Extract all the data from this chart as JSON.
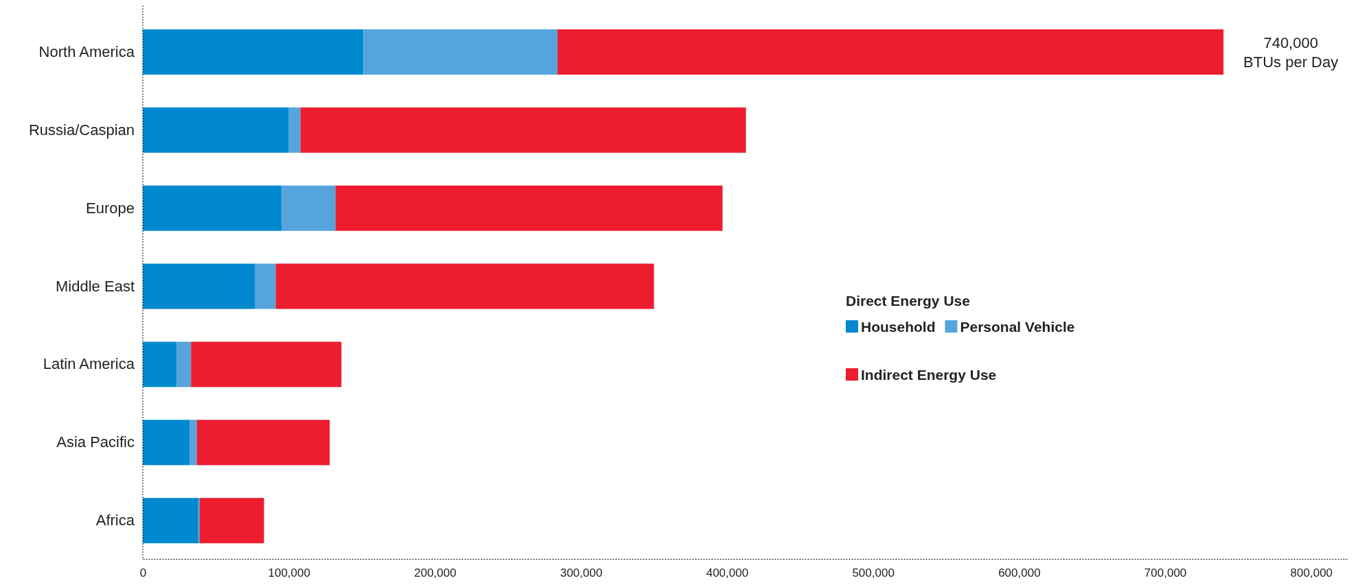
{
  "chart_data": {
    "type": "bar",
    "orientation": "horizontal",
    "stacked": true,
    "categories": [
      "North America",
      "Russia/Caspian",
      "Europe",
      "Middle East",
      "Latin America",
      "Asia Pacific",
      "Africa"
    ],
    "series": [
      {
        "name": "Household",
        "color": "#0089cf",
        "values": [
          151000,
          100000,
          95000,
          77000,
          23000,
          32000,
          38000
        ]
      },
      {
        "name": "Personal Vehicle",
        "color": "#55a5dc",
        "values": [
          133000,
          8000,
          37000,
          14000,
          10000,
          5000,
          1000
        ]
      },
      {
        "name": "Indirect Energy Use",
        "color": "#ed1c2e",
        "values": [
          456000,
          305000,
          265000,
          259000,
          103000,
          91000,
          44000
        ]
      }
    ],
    "xlim": [
      0,
      825000
    ],
    "xticks": [
      {
        "value": 0,
        "label": "0"
      },
      {
        "value": 100000,
        "label": "100,000"
      },
      {
        "value": 200000,
        "label": "200,000"
      },
      {
        "value": 300000,
        "label": "300,000"
      },
      {
        "value": 400000,
        "label": "400,000"
      },
      {
        "value": 500000,
        "label": "500,000"
      },
      {
        "value": 600000,
        "label": "600,000"
      },
      {
        "value": 700000,
        "label": "700,000"
      },
      {
        "value": 800000,
        "label": "800,000"
      }
    ],
    "legend": "right",
    "legend_title": "Direct Energy Use",
    "grid": false,
    "annotations": [
      {
        "text": "740,000 BTUs per Day",
        "x": 740000,
        "y": "North America"
      }
    ]
  }
}
